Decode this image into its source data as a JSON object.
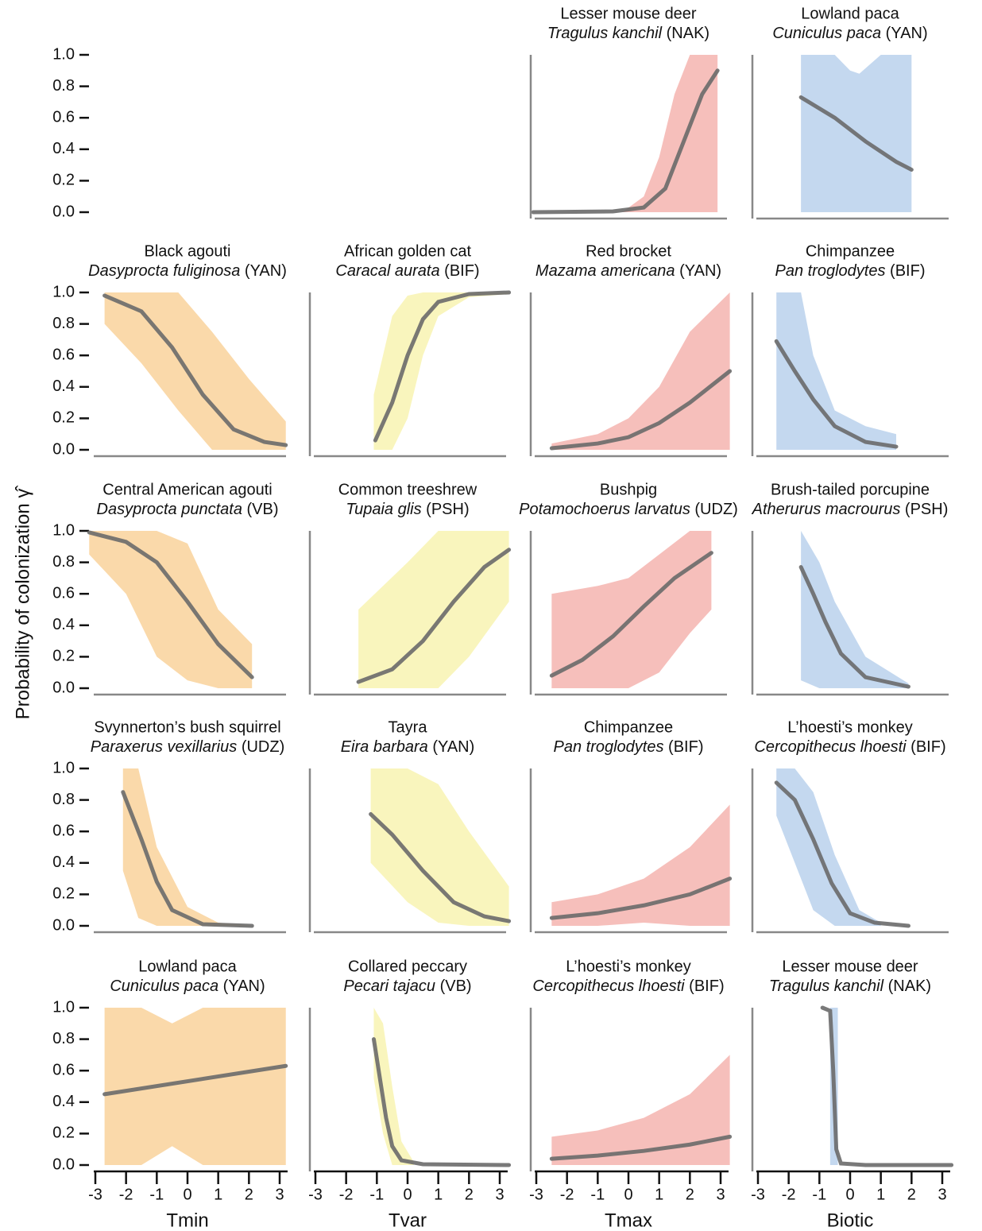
{
  "y_axis": {
    "label": "Probability of colonization γ̂",
    "ylim": [
      0,
      1
    ],
    "yticks": [
      {
        "value": 0,
        "label": "0.0"
      },
      0.2,
      0.4,
      0.6,
      0.8,
      {
        "value": 1,
        "label": "1.0"
      }
    ]
  },
  "chart_data": [
    {
      "type": "line",
      "xlabel": "Tmin",
      "xlim": [
        -3,
        3
      ],
      "xticks": [
        -3,
        -2,
        -1,
        0,
        1,
        2,
        3
      ],
      "color": "#f9d29b",
      "line_color": "#6a6a6a",
      "panels": [
        {
          "title": "Black agouti",
          "species": "Dasyprocta fuliginosa",
          "site": "(YAN)",
          "x": [
            -2.7,
            -1.5,
            -0.5,
            0.5,
            1.5,
            2.5,
            3.2
          ],
          "values": [
            0.98,
            0.88,
            0.65,
            0.35,
            0.13,
            0.05,
            0.03
          ],
          "band_x": [
            -2.7,
            -1.5,
            -0.3,
            0.8,
            2,
            3.2
          ],
          "band_upper": [
            1,
            1,
            1,
            0.75,
            0.45,
            0.18
          ],
          "band_lower": [
            0.8,
            0.55,
            0.25,
            0,
            0,
            0
          ]
        },
        {
          "title": "Central American agouti",
          "species": "Dasyprocta punctata",
          "site": "(VB)",
          "x": [
            -3.2,
            -2,
            -1,
            0,
            1,
            2.1
          ],
          "values": [
            0.99,
            0.93,
            0.8,
            0.55,
            0.28,
            0.07
          ],
          "band_x": [
            -3.2,
            -2,
            -1,
            0,
            1,
            2.1
          ],
          "band_upper": [
            1,
            1,
            1,
            0.92,
            0.5,
            0.28
          ],
          "band_lower": [
            0.85,
            0.6,
            0.2,
            0.05,
            0,
            0
          ]
        },
        {
          "title": "Svynnerton’s bush squirrel",
          "species": "Paraxerus vexillarius",
          "site": "(UDZ)",
          "x": [
            -2.1,
            -1.5,
            -1,
            -0.5,
            0.5,
            2.1
          ],
          "values": [
            0.85,
            0.55,
            0.28,
            0.1,
            0.01,
            0
          ],
          "band_x": [
            -2.1,
            -1.6,
            -1,
            0,
            1,
            2.1
          ],
          "band_upper": [
            1,
            1,
            0.5,
            0.12,
            0.02,
            0
          ],
          "band_lower": [
            0.35,
            0.05,
            0,
            0,
            0,
            0
          ]
        },
        {
          "title": "Lowland paca",
          "species": "Cuniculus paca",
          "site": "(YAN)",
          "x": [
            -2.7,
            3.2
          ],
          "values": [
            0.45,
            0.63
          ],
          "band_x": [
            -2.7,
            -1.5,
            -0.5,
            0.5,
            3.2
          ],
          "band_upper": [
            1,
            1,
            0.9,
            1,
            1
          ],
          "band_lower": [
            0,
            0,
            0.12,
            0,
            0
          ]
        }
      ]
    },
    {
      "type": "line",
      "xlabel": "Tvar",
      "xlim": [
        -3,
        3
      ],
      "xticks": [
        -3,
        -2,
        -1,
        0,
        1,
        2,
        3
      ],
      "color": "#f8f3b2",
      "line_color": "#6a6a6a",
      "panels": [
        {
          "title": "African golden cat",
          "species": "Caracal aurata",
          "site": "(BIF)",
          "x": [
            -1.05,
            -0.5,
            0,
            0.5,
            1,
            2,
            3.3
          ],
          "values": [
            0.06,
            0.3,
            0.6,
            0.83,
            0.94,
            0.99,
            1
          ],
          "band_x": [
            -1.1,
            -0.5,
            0,
            0.5,
            1,
            2,
            3.3
          ],
          "band_upper": [
            0.35,
            0.85,
            0.98,
            1,
            1,
            1,
            1
          ],
          "band_lower": [
            0,
            0,
            0.2,
            0.6,
            0.85,
            0.97,
            0.99
          ]
        },
        {
          "title": "Common treeshrew",
          "species": "Tupaia glis",
          "site": "(PSH)",
          "x": [
            -1.6,
            -0.5,
            0.5,
            1.5,
            2.5,
            3.3
          ],
          "values": [
            0.04,
            0.12,
            0.3,
            0.55,
            0.77,
            0.88
          ],
          "band_x": [
            -1.6,
            0,
            1,
            2,
            3.3
          ],
          "band_upper": [
            0.5,
            0.8,
            1,
            1,
            1
          ],
          "band_lower": [
            0,
            0,
            0,
            0.2,
            0.55
          ]
        },
        {
          "title": "Tayra",
          "species": "Eira barbara",
          "site": "(YAN)",
          "x": [
            -1.2,
            -0.5,
            0.5,
            1.5,
            2.5,
            3.3
          ],
          "values": [
            0.71,
            0.58,
            0.35,
            0.15,
            0.06,
            0.03
          ],
          "band_x": [
            -1.2,
            0,
            1,
            2,
            3.3
          ],
          "band_upper": [
            1,
            1,
            0.9,
            0.6,
            0.25
          ],
          "band_lower": [
            0.4,
            0.15,
            0.02,
            0,
            0
          ]
        },
        {
          "title": "Collared peccary",
          "species": "Pecari tajacu",
          "site": "(VB)",
          "x": [
            -1.1,
            -0.9,
            -0.7,
            -0.5,
            -0.2,
            0.5,
            3.3
          ],
          "values": [
            0.8,
            0.55,
            0.3,
            0.12,
            0.03,
            0.005,
            0
          ],
          "band_x": [
            -1.1,
            -0.8,
            -0.5,
            -0.2,
            0.2
          ],
          "band_upper": [
            1,
            0.9,
            0.5,
            0.15,
            0.02
          ],
          "band_lower": [
            0.55,
            0.2,
            0,
            0,
            0
          ]
        }
      ]
    },
    {
      "type": "line",
      "xlabel": "Tmax",
      "xlim": [
        -3,
        3
      ],
      "xticks": [
        -3,
        -2,
        -1,
        0,
        1,
        2,
        3
      ],
      "color": "#f4b4af",
      "line_color": "#6a6a6a",
      "panels": [
        {
          "title": "Lesser mouse deer",
          "species": "Tragulus kanchil",
          "site": "(NAK)",
          "x": [
            -3.1,
            -0.5,
            0.5,
            1.2,
            1.8,
            2.4,
            2.9
          ],
          "values": [
            0,
            0.005,
            0.03,
            0.15,
            0.45,
            0.75,
            0.9
          ],
          "band_x": [
            -0.2,
            0.5,
            1,
            1.5,
            2,
            2.9
          ],
          "band_upper": [
            0,
            0.1,
            0.35,
            0.75,
            1,
            1
          ],
          "band_lower": [
            0,
            0,
            0,
            0,
            0,
            0
          ]
        },
        {
          "title": "Red brocket",
          "species": "Mazama americana",
          "site": "(YAN)",
          "x": [
            -2.5,
            -1,
            0,
            1,
            2,
            3.3
          ],
          "values": [
            0.01,
            0.04,
            0.08,
            0.17,
            0.3,
            0.5
          ],
          "band_x": [
            -2.5,
            -1,
            0,
            1,
            2,
            3.3
          ],
          "band_upper": [
            0.04,
            0.1,
            0.2,
            0.4,
            0.75,
            1
          ],
          "band_lower": [
            0,
            0,
            0,
            0,
            0,
            0
          ]
        },
        {
          "title": "Bushpig",
          "species": "Potamochoerus larvatus",
          "site": "(UDZ)",
          "x": [
            -2.5,
            -1.5,
            -0.5,
            0.5,
            1.5,
            2.7
          ],
          "values": [
            0.08,
            0.18,
            0.33,
            0.52,
            0.7,
            0.86
          ],
          "band_x": [
            -2.5,
            -1,
            0,
            1,
            2,
            2.7
          ],
          "band_upper": [
            0.6,
            0.65,
            0.7,
            0.85,
            1,
            1
          ],
          "band_lower": [
            0,
            0,
            0,
            0.1,
            0.35,
            0.5
          ]
        },
        {
          "title": "Chimpanzee",
          "species": "Pan troglodytes",
          "site": "(BIF)",
          "x": [
            -2.5,
            -1,
            0.5,
            2,
            3.3
          ],
          "values": [
            0.05,
            0.08,
            0.13,
            0.2,
            0.3
          ],
          "band_x": [
            -2.5,
            -1,
            0.5,
            2,
            3.3
          ],
          "band_upper": [
            0.15,
            0.2,
            0.3,
            0.5,
            0.77
          ],
          "band_lower": [
            0,
            0,
            0.02,
            0,
            0
          ]
        },
        {
          "title": "L’hoesti’s monkey",
          "species": "Cercopithecus lhoesti",
          "site": "(BIF)",
          "x": [
            -2.5,
            -1,
            0.5,
            2,
            3.3
          ],
          "values": [
            0.04,
            0.06,
            0.09,
            0.13,
            0.18
          ],
          "band_x": [
            -2.5,
            -1,
            0.5,
            2,
            3.3
          ],
          "band_upper": [
            0.18,
            0.22,
            0.3,
            0.45,
            0.7
          ],
          "band_lower": [
            0,
            0,
            0,
            0,
            0
          ]
        }
      ]
    },
    {
      "type": "line",
      "xlabel": "Biotic",
      "xlim": [
        -3,
        3
      ],
      "xticks": [
        -3,
        -2,
        -1,
        0,
        1,
        2,
        3
      ],
      "color": "#bad1ec",
      "line_color": "#6a6a6a",
      "panels": [
        {
          "title": "Lowland paca",
          "species": "Cuniculus paca",
          "site": "(YAN)",
          "x": [
            -1.6,
            -0.5,
            0.5,
            1.5,
            2
          ],
          "values": [
            0.73,
            0.6,
            0.45,
            0.32,
            0.27
          ],
          "band_x": [
            -1.6,
            -0.5,
            0,
            0.3,
            1,
            2
          ],
          "band_upper": [
            1,
            1,
            0.9,
            0.88,
            1,
            1
          ],
          "band_lower": [
            0,
            0,
            0,
            0,
            0,
            0
          ]
        },
        {
          "title": "Chimpanzee",
          "species": "Pan troglodytes",
          "site": "(BIF)",
          "x": [
            -2.4,
            -1.8,
            -1.2,
            -0.5,
            0.5,
            1.5
          ],
          "values": [
            0.69,
            0.5,
            0.32,
            0.15,
            0.05,
            0.02
          ],
          "band_x": [
            -2.4,
            -1.6,
            -1.2,
            -0.5,
            0.5,
            1.5
          ],
          "band_upper": [
            1,
            1,
            0.6,
            0.25,
            0.15,
            0.1
          ],
          "band_lower": [
            0,
            0,
            0,
            0,
            0,
            0
          ]
        },
        {
          "title": "Brush-tailed porcupine",
          "species": "Atherurus macrourus",
          "site": "(PSH)",
          "x": [
            -1.6,
            -1.2,
            -0.8,
            -0.3,
            0.5,
            1.9
          ],
          "values": [
            0.77,
            0.6,
            0.42,
            0.22,
            0.07,
            0.01
          ],
          "band_x": [
            -1.6,
            -1,
            -0.5,
            0.5,
            1.9
          ],
          "band_upper": [
            1,
            0.8,
            0.55,
            0.2,
            0.03
          ],
          "band_lower": [
            0.05,
            0,
            0,
            0,
            0
          ]
        },
        {
          "title": "L’hoesti’s monkey",
          "species": "Cercopithecus lhoesti",
          "site": "(BIF)",
          "x": [
            -2.4,
            -1.8,
            -1.2,
            -0.6,
            0,
            0.8,
            1.9
          ],
          "values": [
            0.91,
            0.8,
            0.55,
            0.27,
            0.08,
            0.02,
            0
          ],
          "band_x": [
            -2.4,
            -1.8,
            -1.2,
            -0.5,
            0.3,
            1
          ],
          "band_upper": [
            1,
            1,
            0.85,
            0.45,
            0.1,
            0.02
          ],
          "band_lower": [
            0.7,
            0.4,
            0.1,
            0,
            0,
            0
          ]
        },
        {
          "title": "Lesser mouse deer",
          "species": "Tragulus kanchil",
          "site": "(NAK)",
          "x": [
            -0.9,
            -0.65,
            -0.55,
            -0.45,
            -0.3,
            0.5,
            3.3
          ],
          "values": [
            1,
            0.98,
            0.6,
            0.1,
            0.01,
            0,
            0
          ],
          "band_x": [
            -0.65,
            -0.4
          ],
          "band_upper": [
            1,
            1
          ],
          "band_lower": [
            0,
            0
          ]
        }
      ]
    }
  ]
}
